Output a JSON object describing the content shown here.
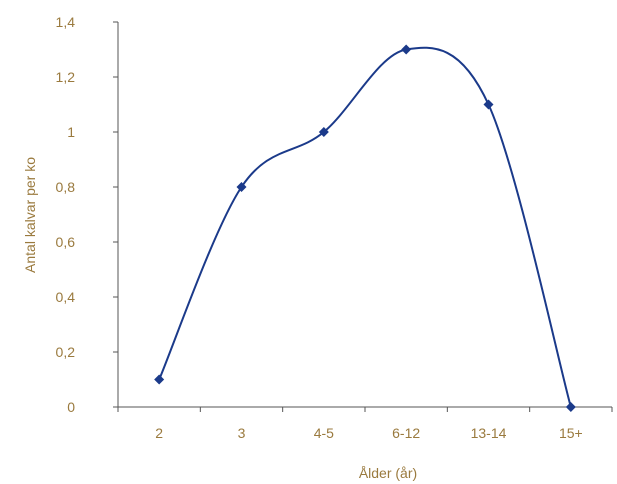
{
  "chart_data": {
    "type": "line",
    "categories": [
      "2",
      "3",
      "4-5",
      "6-12",
      "13-14",
      "15+"
    ],
    "series": [
      {
        "values": [
          0.1,
          0.8,
          1.0,
          1.3,
          1.1,
          0.0
        ]
      }
    ],
    "xlabel": "Ålder (år)",
    "ylabel": "Antal kalvar per ko",
    "ylim": [
      0,
      1.4
    ],
    "yticks": [
      "0",
      "0,2",
      "0,4",
      "0,6",
      "0,8",
      "1",
      "1,2",
      "1,4"
    ],
    "grid": false,
    "smooth": true,
    "marker": "diamond",
    "colors": {
      "series": "#1b3a8a",
      "labels": "#9a7a3e",
      "axis": "#555555"
    }
  }
}
